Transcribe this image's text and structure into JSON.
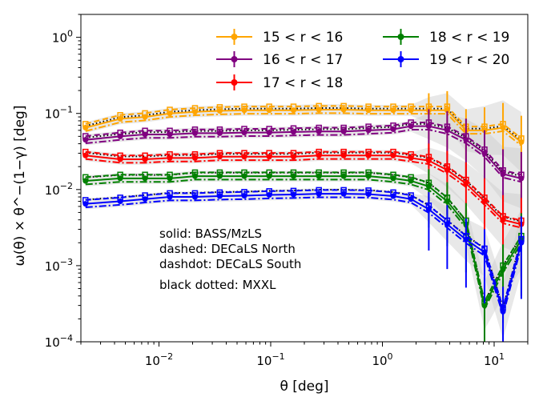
{
  "chart_data": {
    "type": "line",
    "xscale": "log",
    "yscale": "log",
    "xlim": [
      0.002,
      20
    ],
    "ylim": [
      0.0001,
      2
    ],
    "xlabel": "θ [deg]",
    "ylabel": "ω(θ) × θ^−(1−γ) [deg]",
    "xticks": [
      {
        "value": 0.01,
        "base": "10",
        "exp": "−2"
      },
      {
        "value": 0.1,
        "base": "10",
        "exp": "−1"
      },
      {
        "value": 1,
        "base": "10",
        "exp": "0"
      },
      {
        "value": 10,
        "base": "10",
        "exp": "1"
      }
    ],
    "yticks": [
      {
        "value": 0.0001,
        "base": "10",
        "exp": "−4"
      },
      {
        "value": 0.001,
        "base": "10",
        "exp": "−3"
      },
      {
        "value": 0.01,
        "base": "10",
        "exp": "−2"
      },
      {
        "value": 0.1,
        "base": "10",
        "exp": "−1"
      },
      {
        "value": 1,
        "base": "10",
        "exp": "0"
      }
    ],
    "x": [
      0.0022,
      0.0045,
      0.0075,
      0.0125,
      0.021,
      0.035,
      0.058,
      0.097,
      0.16,
      0.27,
      0.45,
      0.75,
      1.25,
      1.8,
      2.6,
      3.8,
      5.6,
      8.2,
      12,
      17.5
    ],
    "annotations": [
      "solid: BASS/MzLS",
      "dashed: DECaLS North",
      "dashdot: DECaLS South",
      "black dotted: MXXL"
    ],
    "legend_position": "upper right",
    "series": [
      {
        "name": "15 < r < 16",
        "color": "#FFA500",
        "values": [
          0.065,
          0.085,
          0.09,
          0.1,
          0.105,
          0.108,
          0.11,
          0.11,
          0.11,
          0.112,
          0.112,
          0.11,
          0.11,
          0.11,
          0.11,
          0.11,
          0.06,
          0.06,
          0.065,
          0.042
        ]
      },
      {
        "name": "16 < r < 17",
        "color": "#800080",
        "values": [
          0.045,
          0.05,
          0.053,
          0.053,
          0.055,
          0.055,
          0.056,
          0.056,
          0.057,
          0.058,
          0.058,
          0.06,
          0.062,
          0.068,
          0.068,
          0.06,
          0.045,
          0.03,
          0.016,
          0.014
        ]
      },
      {
        "name": "17 < r < 18",
        "color": "#FF0000",
        "values": [
          0.028,
          0.025,
          0.025,
          0.026,
          0.026,
          0.027,
          0.027,
          0.027,
          0.027,
          0.028,
          0.028,
          0.028,
          0.028,
          0.026,
          0.024,
          0.018,
          0.012,
          0.007,
          0.004,
          0.0035
        ]
      },
      {
        "name": "18 < r < 19",
        "color": "#008000",
        "values": [
          0.013,
          0.014,
          0.014,
          0.014,
          0.015,
          0.015,
          0.015,
          0.015,
          0.015,
          0.015,
          0.015,
          0.015,
          0.014,
          0.013,
          0.011,
          0.007,
          0.0035,
          0.0003,
          0.0009,
          0.0022
        ]
      },
      {
        "name": "19 < r < 20",
        "color": "#0000FF",
        "values": [
          0.0065,
          0.007,
          0.0075,
          0.008,
          0.008,
          0.0082,
          0.0083,
          0.0085,
          0.0086,
          0.0088,
          0.0088,
          0.0087,
          0.0082,
          0.0075,
          0.0055,
          0.0035,
          0.0022,
          0.0015,
          0.00025,
          0.002
        ]
      }
    ]
  }
}
